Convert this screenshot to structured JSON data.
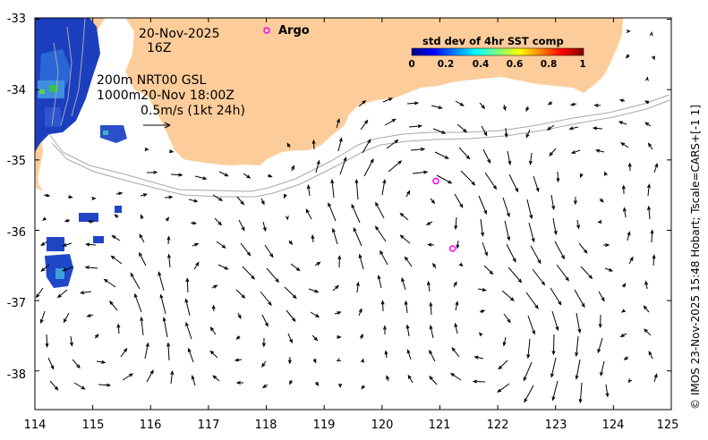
{
  "map": {
    "lon_ticks": [
      "114",
      "115",
      "116",
      "117",
      "118",
      "119",
      "120",
      "121",
      "122",
      "123",
      "124",
      "125"
    ],
    "lat_ticks": [
      "-33",
      "-34",
      "-35",
      "-36",
      "-37",
      "-38"
    ],
    "lon_range": [
      114,
      125
    ],
    "lat_range": [
      -38.55,
      -32.98
    ]
  },
  "info": {
    "date": "20-Nov-2025",
    "hour": "16Z",
    "line_200m": "200m  NRT00 GSL",
    "line_1000m": "1000m20-Nov 18:00Z",
    "scale": "0.5m/s (1kt 24h)"
  },
  "legend": {
    "argo_label": "Argo",
    "colorbar_title": "std dev of 4hr SST comp",
    "colorbar_ticks": [
      "0",
      "0.2",
      "0.4",
      "0.6",
      "0.8",
      "1"
    ]
  },
  "argo_floats": [
    {
      "lon": 120.93,
      "lat": -35.3
    },
    {
      "lon": 121.22,
      "lat": -36.26
    }
  ],
  "credit": "© IMOS 23-Nov-2025 15:48 Hobart; Tscale=CARS+[-1 1]",
  "colors": {
    "land": "#fccc9a",
    "argo": "#ff00ff",
    "bathy": "#a8a8a8"
  }
}
